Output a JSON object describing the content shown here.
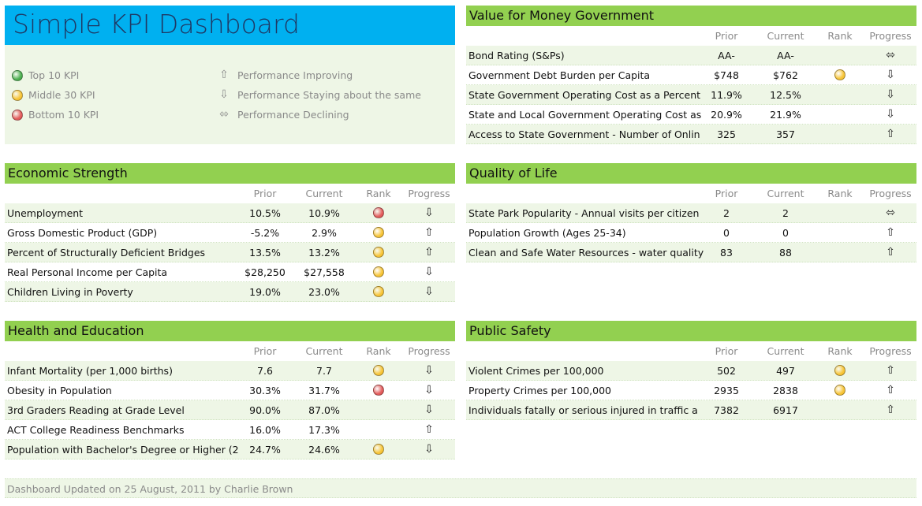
{
  "title": "Simple KPI Dashboard",
  "legend": {
    "ranks": [
      {
        "label": "Top 10 KPI",
        "color": "#4caf50"
      },
      {
        "label": "Middle 30 KPI",
        "color": "#f7c436"
      },
      {
        "label": "Bottom 10 KPI",
        "color": "#e35b5b"
      }
    ],
    "progress": [
      {
        "symbol": "⇧",
        "label": "Performance Improving"
      },
      {
        "symbol": "⇩",
        "label": "Performance Staying about the same"
      },
      {
        "symbol": "⬄",
        "label": "Performance Declining"
      }
    ]
  },
  "column_headers": [
    "Prior",
    "Current",
    "Rank",
    "Progress"
  ],
  "sections": [
    {
      "title": "Value for Money Government",
      "rows": [
        {
          "label": "Bond Rating (S&Ps)",
          "prior": "AA-",
          "current": "AA-",
          "rank": null,
          "progress": "⬄"
        },
        {
          "label": "Government Debt Burden per Capita",
          "prior": "$748",
          "current": "$762",
          "rank": "#f7c436",
          "progress": "⇩"
        },
        {
          "label": "State Government Operating Cost as a Percent",
          "prior": "11.9%",
          "current": "12.5%",
          "rank": null,
          "progress": "⇩"
        },
        {
          "label": "State and Local Government Operating Cost as",
          "prior": "20.9%",
          "current": "21.9%",
          "rank": null,
          "progress": "⇩"
        },
        {
          "label": "Access to State Government - Number of Onlin",
          "prior": "325",
          "current": "357",
          "rank": null,
          "progress": "⇧"
        }
      ]
    },
    {
      "title": "Economic Strength",
      "rows": [
        {
          "label": "Unemployment",
          "prior": "10.5%",
          "current": "10.9%",
          "rank": "#e35b5b",
          "progress": "⇩"
        },
        {
          "label": "Gross Domestic Product (GDP)",
          "prior": "-5.2%",
          "current": "2.9%",
          "rank": "#f7c436",
          "progress": "⇧"
        },
        {
          "label": "Percent of Structurally Deficient Bridges",
          "prior": "13.5%",
          "current": "13.2%",
          "rank": "#f7c436",
          "progress": "⇧"
        },
        {
          "label": "Real Personal Income per Capita",
          "prior": "$28,250",
          "current": "$27,558",
          "rank": "#f7c436",
          "progress": "⇩"
        },
        {
          "label": "Children Living in Poverty",
          "prior": "19.0%",
          "current": "23.0%",
          "rank": "#f7c436",
          "progress": "⇩"
        }
      ]
    },
    {
      "title": "Quality of Life",
      "rows": [
        {
          "label": "State Park Popularity - Annual visits per citizen",
          "prior": "2",
          "current": "2",
          "rank": null,
          "progress": "⬄"
        },
        {
          "label": "Population Growth (Ages 25-34)",
          "prior": "0",
          "current": "0",
          "rank": null,
          "progress": "⇧"
        },
        {
          "label": "Clean and Safe Water Resources - water quality",
          "prior": "83",
          "current": "88",
          "rank": null,
          "progress": "⇧"
        }
      ]
    },
    {
      "title": "Health and Education",
      "rows": [
        {
          "label": "Infant Mortality (per 1,000 births)",
          "prior": "7.6",
          "current": "7.7",
          "rank": "#f7c436",
          "progress": "⇩"
        },
        {
          "label": "Obesity in Population",
          "prior": "30.3%",
          "current": "31.7%",
          "rank": "#e35b5b",
          "progress": "⇩"
        },
        {
          "label": "3rd Graders Reading at Grade Level",
          "prior": "90.0%",
          "current": "87.0%",
          "rank": null,
          "progress": "⇩"
        },
        {
          "label": "ACT College Readiness Benchmarks",
          "prior": "16.0%",
          "current": "17.3%",
          "rank": null,
          "progress": "⇧"
        },
        {
          "label": "Population with Bachelor's Degree or Higher (2",
          "prior": "24.7%",
          "current": "24.6%",
          "rank": "#f7c436",
          "progress": "⇩"
        }
      ]
    },
    {
      "title": "Public Safety",
      "rows": [
        {
          "label": "Violent Crimes per 100,000",
          "prior": "502",
          "current": "497",
          "rank": "#f7c436",
          "progress": "⇧"
        },
        {
          "label": "Property Crimes per 100,000",
          "prior": "2935",
          "current": "2838",
          "rank": "#f7c436",
          "progress": "⇧"
        },
        {
          "label": "Individuals fatally or serious injured in traffic a",
          "prior": "7382",
          "current": "6917",
          "rank": null,
          "progress": "⇧"
        }
      ]
    }
  ],
  "footer": "Dashboard Updated on 25 August, 2011 by Charlie Brown"
}
